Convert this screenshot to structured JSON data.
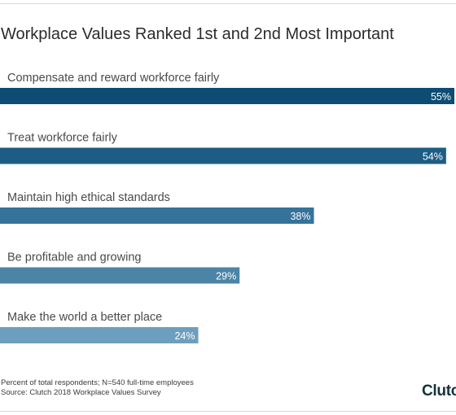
{
  "title": "Workplace Values Ranked 1st and 2nd Most Important",
  "chart_data": {
    "type": "bar",
    "orientation": "horizontal",
    "title": "Workplace Values Ranked 1st and 2nd Most Important",
    "categories": [
      "Compensate and reward workforce fairly",
      "Treat workforce fairly",
      "Maintain high ethical standards",
      "Be profitable and growing",
      "Make the world a better place"
    ],
    "values": [
      55,
      54,
      38,
      29,
      24
    ],
    "value_labels": [
      "55%",
      "54%",
      "38%",
      "29%",
      "24%"
    ],
    "unit": "%",
    "xlim": [
      0,
      55
    ],
    "grid": false,
    "bar_colors": [
      "#0d4c73",
      "#1d5d84",
      "#36739a",
      "#4c84a6",
      "#6e9ebd"
    ]
  },
  "footnote": {
    "line1": "Percent of total respondents; N=540 full-time employees",
    "line2": "Source: Clutch 2018 Workplace Values Survey"
  },
  "brand": "Clutch"
}
